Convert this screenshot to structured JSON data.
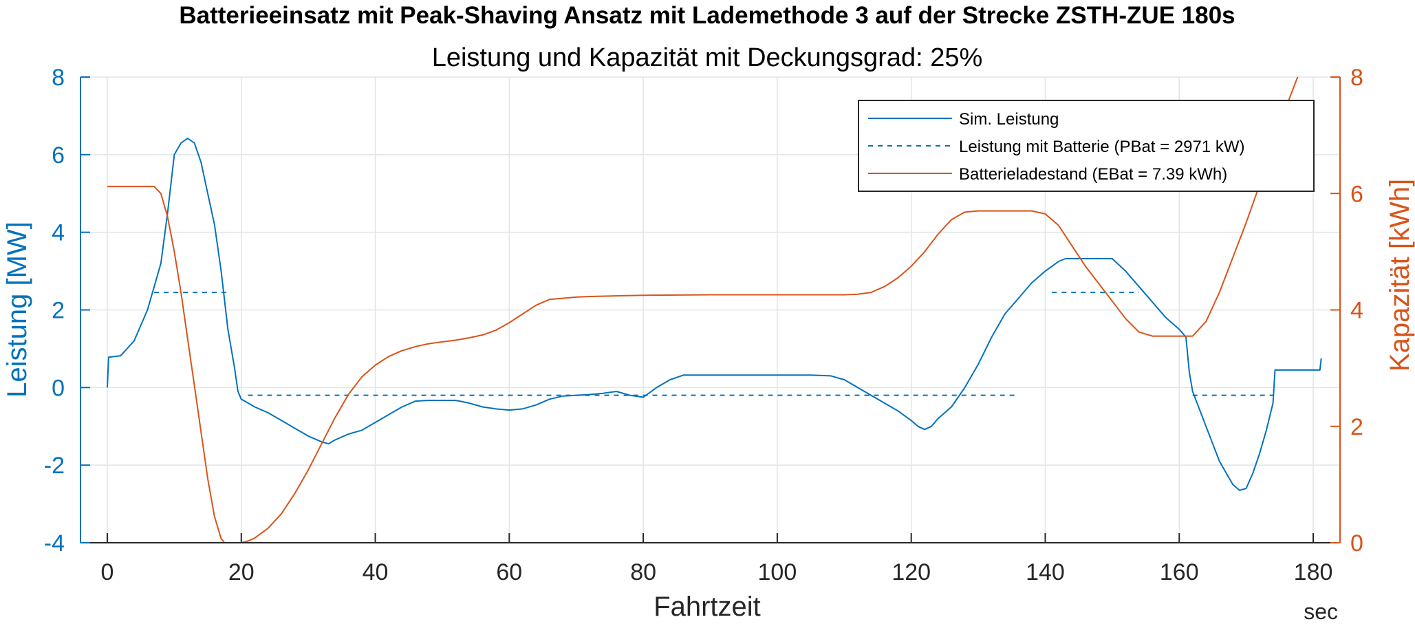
{
  "chart_data": {
    "type": "line",
    "title": "Batterieeinsatz mit Peak-Shaving Ansatz mit Lademethode 3 auf der Strecke ZSTH-ZUE 180s",
    "subtitle": "Leistung und Kapazität mit Deckungsgrad: 25%",
    "xlabel": "Fahrtzeit",
    "xunit": "sec",
    "ylabel_left": "Leistung [MW]",
    "ylabel_right": "Kapazität [kWh]",
    "xlim": [
      -4,
      184
    ],
    "ylim_left": [
      -4,
      8
    ],
    "ylim_right": [
      0,
      8
    ],
    "xticks": [
      0,
      20,
      40,
      60,
      80,
      100,
      120,
      140,
      160,
      180
    ],
    "yticks_left": [
      -4,
      -2,
      0,
      2,
      4,
      6,
      8
    ],
    "yticks_right": [
      0,
      2,
      4,
      6,
      8
    ],
    "grid": true,
    "legend_position": "top-right",
    "colors": {
      "blue": "#0072BD",
      "orange": "#D95319"
    },
    "series": [
      {
        "name": "Sim. Leistung",
        "axis": "left",
        "style": "solid",
        "color": "#0072BD",
        "x": [
          0,
          0.2,
          2,
          4,
          6,
          8,
          9,
          10,
          11,
          12,
          13,
          14,
          15,
          16,
          17,
          18,
          19,
          19.5,
          20,
          21,
          22,
          24,
          26,
          28,
          30,
          32,
          33,
          34,
          36,
          38,
          40,
          42,
          44,
          46,
          48,
          50,
          52,
          54,
          56,
          58,
          60,
          62,
          64,
          66,
          68,
          70,
          72,
          74,
          76,
          78,
          80,
          82,
          84,
          86,
          88,
          90,
          95,
          100,
          105,
          108,
          110,
          112,
          114,
          116,
          118,
          120,
          121,
          122,
          123,
          124,
          126,
          128,
          130,
          132,
          134,
          136,
          138,
          140,
          142,
          143,
          144,
          146,
          148,
          150,
          152,
          154,
          156,
          158,
          160,
          161,
          161.5,
          162,
          164,
          166,
          168,
          169,
          170,
          171,
          172,
          173,
          174,
          174.3,
          175,
          177,
          179,
          181,
          181.2
        ],
        "y": [
          0,
          0.78,
          0.82,
          1.2,
          2.0,
          3.2,
          4.5,
          6.0,
          6.3,
          6.42,
          6.3,
          5.8,
          5.0,
          4.2,
          3.0,
          1.5,
          0.5,
          -0.1,
          -0.3,
          -0.4,
          -0.5,
          -0.65,
          -0.85,
          -1.05,
          -1.25,
          -1.4,
          -1.45,
          -1.35,
          -1.2,
          -1.1,
          -0.9,
          -0.7,
          -0.5,
          -0.35,
          -0.33,
          -0.33,
          -0.33,
          -0.4,
          -0.5,
          -0.55,
          -0.58,
          -0.55,
          -0.45,
          -0.3,
          -0.22,
          -0.2,
          -0.18,
          -0.15,
          -0.1,
          -0.2,
          -0.25,
          0,
          0.2,
          0.32,
          0.32,
          0.32,
          0.32,
          0.32,
          0.32,
          0.3,
          0.2,
          0,
          -0.2,
          -0.4,
          -0.6,
          -0.85,
          -1.0,
          -1.08,
          -1.0,
          -0.8,
          -0.5,
          0,
          0.6,
          1.3,
          1.9,
          2.3,
          2.7,
          3.0,
          3.25,
          3.32,
          3.32,
          3.32,
          3.32,
          3.32,
          3.0,
          2.6,
          2.2,
          1.8,
          1.5,
          1.3,
          0.4,
          -0.1,
          -1.0,
          -1.9,
          -2.5,
          -2.65,
          -2.6,
          -2.2,
          -1.7,
          -1.1,
          -0.4,
          0.45,
          0.45,
          0.45,
          0.45,
          0.45,
          0.75
        ]
      },
      {
        "name": "Leistung mit Batterie (PBat = 2971 kW)",
        "axis": "left",
        "style": "dashed",
        "color": "#0072BD",
        "segments": [
          {
            "x": [
              7,
              18
            ],
            "y": [
              2.45,
              2.45
            ]
          },
          {
            "x": [
              21,
              116
            ],
            "y": [
              -0.2,
              -0.2
            ]
          },
          {
            "x": [
              116,
              136
            ],
            "y": [
              -0.2,
              -0.2
            ]
          },
          {
            "x": [
              141,
              154
            ],
            "y": [
              2.45,
              2.45
            ]
          },
          {
            "x": [
              162,
              174
            ],
            "y": [
              -0.2,
              -0.2
            ]
          }
        ]
      },
      {
        "name": "Batterieladestand (EBat = 7.39 kWh)",
        "axis": "right",
        "style": "solid",
        "color": "#D95319",
        "x": [
          0,
          4,
          6,
          7,
          8,
          9,
          10,
          11,
          12,
          13,
          14,
          15,
          16,
          17,
          17.5,
          18,
          19,
          20,
          21,
          22,
          24,
          26,
          28,
          30,
          32,
          34,
          36,
          38,
          40,
          42,
          44,
          46,
          48,
          50,
          52,
          54,
          56,
          58,
          60,
          62,
          64,
          66,
          68,
          70,
          72,
          80,
          90,
          100,
          110,
          112,
          114,
          116,
          118,
          120,
          122,
          124,
          126,
          128,
          130,
          132,
          134,
          136,
          138,
          140,
          142,
          144,
          146,
          148,
          150,
          152,
          154,
          156,
          158,
          160,
          162,
          164,
          166,
          168,
          170,
          172,
          174,
          176,
          178,
          179.5
        ],
        "y": [
          6.12,
          6.12,
          6.12,
          6.12,
          6.0,
          5.6,
          5.0,
          4.3,
          3.5,
          2.7,
          1.9,
          1.1,
          0.45,
          0.07,
          0,
          0,
          0,
          0,
          0.03,
          0.08,
          0.25,
          0.5,
          0.85,
          1.25,
          1.7,
          2.15,
          2.55,
          2.85,
          3.05,
          3.2,
          3.3,
          3.37,
          3.42,
          3.45,
          3.48,
          3.52,
          3.57,
          3.65,
          3.78,
          3.93,
          4.08,
          4.18,
          4.2,
          4.22,
          4.23,
          4.25,
          4.26,
          4.26,
          4.26,
          4.27,
          4.3,
          4.4,
          4.55,
          4.75,
          5.0,
          5.3,
          5.55,
          5.68,
          5.7,
          5.7,
          5.7,
          5.7,
          5.7,
          5.65,
          5.45,
          5.1,
          4.75,
          4.45,
          4.15,
          3.85,
          3.62,
          3.55,
          3.55,
          3.55,
          3.55,
          3.8,
          4.3,
          4.9,
          5.5,
          6.15,
          6.8,
          7.5,
          8.1,
          8.5
        ]
      }
    ]
  }
}
